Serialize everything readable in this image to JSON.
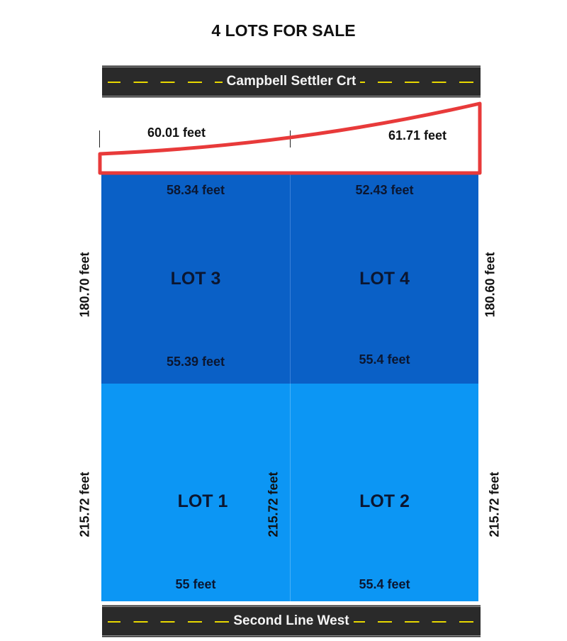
{
  "title": "4 LOTS FOR SALE",
  "roads": {
    "top": "Campbell Settler Crt",
    "bottom": "Second Line West"
  },
  "frontage": {
    "left": "60.01 feet",
    "right": "61.71 feet"
  },
  "lots": {
    "lot3": {
      "name": "LOT 3",
      "top": "58.34 feet",
      "bottom": "55.39 feet",
      "side": "180.70 feet"
    },
    "lot4": {
      "name": "LOT 4",
      "top": "52.43 feet",
      "bottom": "55.4 feet",
      "side": "180.60 feet"
    },
    "lot1": {
      "name": "LOT 1",
      "bottom": "55 feet",
      "left_side": "215.72 feet",
      "right_side": "215.72 feet"
    },
    "lot2": {
      "name": "LOT 2",
      "bottom": "55.4 feet",
      "side": "215.72 feet"
    }
  },
  "colors": {
    "upper_lots": "#0a60c6",
    "lower_lots": "#0c96f4",
    "highlight": "#e83a3a",
    "road": "#2a2a2a",
    "road_dash": "#e8d800"
  }
}
